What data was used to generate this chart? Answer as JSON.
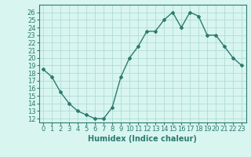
{
  "x": [
    0,
    1,
    2,
    3,
    4,
    5,
    6,
    7,
    8,
    9,
    10,
    11,
    12,
    13,
    14,
    15,
    16,
    17,
    18,
    19,
    20,
    21,
    22,
    23
  ],
  "y": [
    18.5,
    17.5,
    15.5,
    14.0,
    13.0,
    12.5,
    12.0,
    12.0,
    13.5,
    17.5,
    20.0,
    21.5,
    23.5,
    23.5,
    25.0,
    26.0,
    24.0,
    26.0,
    25.5,
    23.0,
    23.0,
    21.5,
    20.0,
    19.0
  ],
  "line_color": "#2d7b6e",
  "marker": "D",
  "marker_size": 2,
  "bg_color": "#d8f5f0",
  "grid_color": "#aad8d0",
  "xlabel": "Humidex (Indice chaleur)",
  "ylim": [
    11.5,
    27
  ],
  "xlim": [
    -0.5,
    23.5
  ],
  "yticks": [
    12,
    13,
    14,
    15,
    16,
    17,
    18,
    19,
    20,
    21,
    22,
    23,
    24,
    25,
    26
  ],
  "xticks": [
    0,
    1,
    2,
    3,
    4,
    5,
    6,
    7,
    8,
    9,
    10,
    11,
    12,
    13,
    14,
    15,
    16,
    17,
    18,
    19,
    20,
    21,
    22,
    23
  ],
  "font_size": 6,
  "label_font_size": 7,
  "tick_color": "#2d7b6e",
  "line_width": 1.0
}
